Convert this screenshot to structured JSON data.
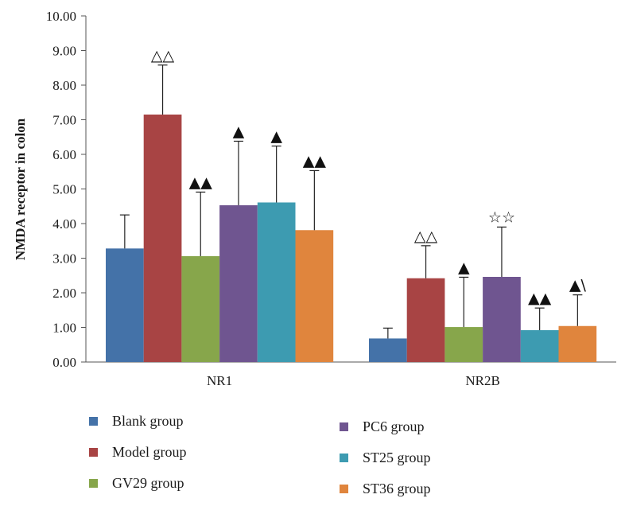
{
  "chart_data": {
    "type": "bar",
    "title": "",
    "xlabel": "",
    "ylabel": "NMDA receptor in colon",
    "ylim": [
      0,
      10
    ],
    "yticks": [
      "0.00",
      "1.00",
      "2.00",
      "3.00",
      "4.00",
      "5.00",
      "6.00",
      "7.00",
      "8.00",
      "9.00",
      "10.00"
    ],
    "categories": [
      "NR1",
      "NR2B"
    ],
    "series": [
      {
        "name": "Blank group",
        "color": "#4472a8",
        "values": [
          3.28,
          0.68
        ],
        "errors": [
          0.97,
          0.3
        ],
        "annotations": [
          "",
          ""
        ]
      },
      {
        "name": "Model group",
        "color": "#a84444",
        "values": [
          7.15,
          2.42
        ],
        "errors": [
          1.43,
          0.94
        ],
        "annotations": [
          "△△",
          "△△"
        ]
      },
      {
        "name": "GV29 group",
        "color": "#87a64b",
        "values": [
          3.06,
          1.01
        ],
        "errors": [
          1.85,
          1.44
        ],
        "annotations": [
          "▲▲",
          "▲"
        ]
      },
      {
        "name": "PC6 group",
        "color": "#6f5590",
        "values": [
          4.53,
          2.46
        ],
        "errors": [
          1.85,
          1.44
        ],
        "annotations": [
          "▲",
          "☆☆"
        ]
      },
      {
        "name": "ST25 group",
        "color": "#3d9bb1",
        "values": [
          4.61,
          0.92
        ],
        "errors": [
          1.63,
          0.64
        ],
        "annotations": [
          "▲",
          "▲▲"
        ]
      },
      {
        "name": "ST36 group",
        "color": "#e0853d",
        "values": [
          3.81,
          1.04
        ],
        "errors": [
          1.72,
          0.9
        ],
        "annotations": [
          "▲▲",
          "▲\\"
        ]
      }
    ]
  }
}
